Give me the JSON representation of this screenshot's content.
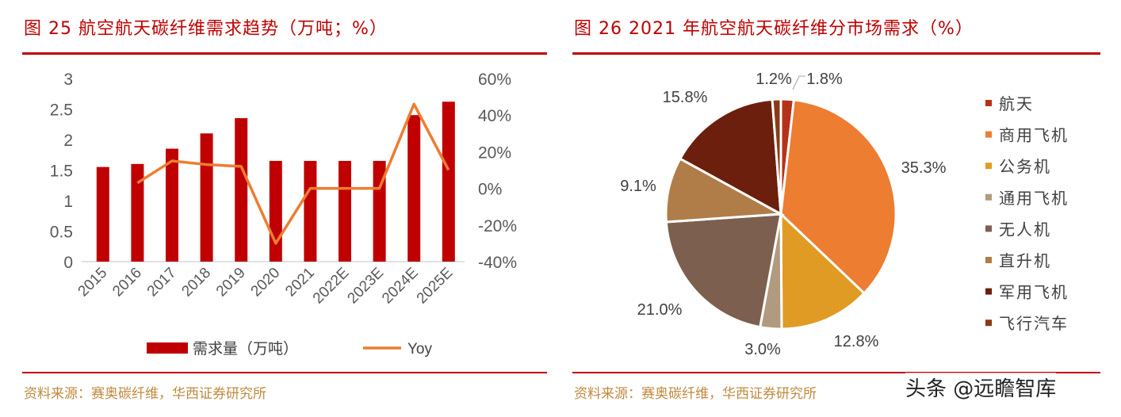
{
  "left": {
    "title": "图 25   航空航天碳纤维需求趋势（万吨；%）",
    "source": "资料来源：赛奥碳纤维，华西证券研究所"
  },
  "right": {
    "title": "图 26   2021 年航空航天碳纤维分市场需求（%）",
    "source": "资料来源：赛奥碳纤维，华西证券研究所"
  },
  "watermark": "头条 @远瞻智库",
  "chart_data": [
    {
      "type": "bar+line",
      "categories": [
        "2015",
        "2016",
        "2017",
        "2018",
        "2019",
        "2020",
        "2021",
        "2022E",
        "2023E",
        "2024E",
        "2025E"
      ],
      "series": [
        {
          "name": "需求量（万吨）",
          "type": "bar",
          "axis": "left",
          "color": "#c00000",
          "values": [
            1.55,
            1.6,
            1.85,
            2.1,
            2.35,
            1.65,
            1.65,
            1.65,
            1.65,
            2.4,
            2.62
          ]
        },
        {
          "name": "Yoy",
          "type": "line",
          "axis": "right",
          "color": "#ed7d31",
          "values": [
            null,
            3,
            15,
            13,
            12,
            -30,
            0,
            0,
            0,
            46,
            10
          ]
        }
      ],
      "ylim": [
        0,
        3
      ],
      "yticks": [
        "0",
        "0.5",
        "1",
        "1.5",
        "2",
        "2.5",
        "3"
      ],
      "y2lim": [
        -40,
        60
      ],
      "y2ticks": [
        "-40%",
        "-20%",
        "0%",
        "20%",
        "40%",
        "60%"
      ],
      "legend": "bottom",
      "grid": false
    },
    {
      "type": "pie",
      "categories": [
        "航天",
        "商用飞机",
        "公务机",
        "通用飞机",
        "无人机",
        "直升机",
        "军用飞机",
        "飞行汽车"
      ],
      "values": [
        1.8,
        35.3,
        12.8,
        3.0,
        21.0,
        9.1,
        15.8,
        1.2
      ],
      "labels": [
        "1.8%",
        "35.3%",
        "12.8%",
        "3.0%",
        "21.0%",
        "9.1%",
        "15.8%",
        "1.2%"
      ],
      "colors": [
        "#b5321a",
        "#ed7d31",
        "#e09b25",
        "#b09a80",
        "#7d5f4f",
        "#b07d48",
        "#6b1f0c",
        "#8b3a14"
      ],
      "legend": "right"
    }
  ]
}
